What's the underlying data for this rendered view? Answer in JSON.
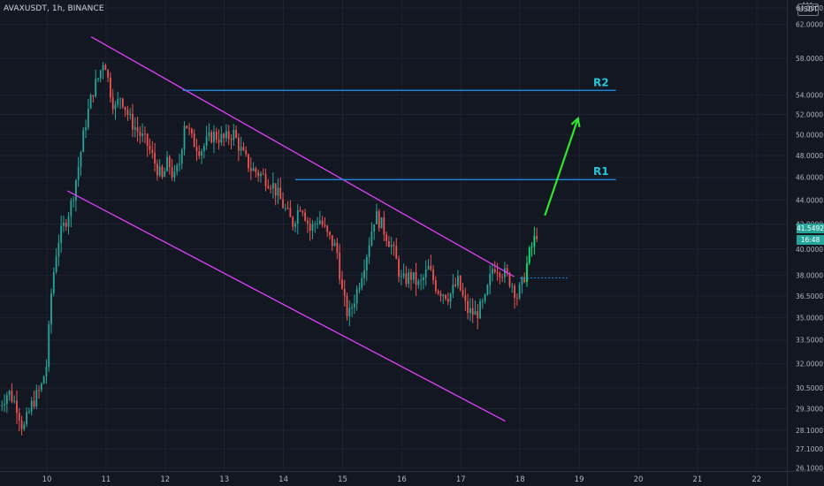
{
  "header": {
    "symbol_title": "AVAXUSDT, 1h, BINANCE",
    "currency_label": "USDT"
  },
  "price_tag": {
    "price": "41.5492",
    "countdown": "16:48"
  },
  "colors": {
    "background": "#131722",
    "up": "#26a69a",
    "down": "#ef5350",
    "up_bright": "#00e676",
    "channel": "#e040fb",
    "resistance": "#2196f3",
    "arrow": "#2ee62e",
    "level_label": "#26c6da"
  },
  "chart_data": {
    "type": "candlestick",
    "title": "AVAXUSDT, 1h, BINANCE",
    "xlabel": "",
    "ylabel": "",
    "x_ticks": [
      "10",
      "11",
      "12",
      "13",
      "14",
      "15",
      "16",
      "17",
      "18",
      "19",
      "20",
      "21",
      "22"
    ],
    "y_ticks": [
      "62.0000",
      "58.0000",
      "54.0000",
      "52.0000",
      "50.0000",
      "48.0000",
      "46.0000",
      "44.0000",
      "42.0000",
      "40.0000",
      "38.0000",
      "36.5000",
      "35.0000",
      "33.5000",
      "32.0000",
      "30.5000",
      "29.3000",
      "28.1000",
      "27.1000",
      "26.1000",
      "64.0000"
    ],
    "y_scale": "log",
    "ylim": [
      25.2,
      65.0
    ],
    "xlim": [
      9.17,
      22.2
    ],
    "last_price": 41.5492,
    "price_path": [
      [
        9.2,
        29.5
      ],
      [
        9.35,
        30.3
      ],
      [
        9.5,
        29.4
      ],
      [
        9.6,
        28.1
      ],
      [
        9.75,
        29.6
      ],
      [
        9.9,
        30.5
      ],
      [
        10.0,
        32.0
      ],
      [
        10.08,
        37.0
      ],
      [
        10.18,
        40.5
      ],
      [
        10.3,
        42.0
      ],
      [
        10.42,
        43.8
      ],
      [
        10.55,
        47.5
      ],
      [
        10.65,
        51.0
      ],
      [
        10.78,
        54.5
      ],
      [
        10.88,
        56.0
      ],
      [
        10.97,
        58.2
      ],
      [
        11.05,
        55.0
      ],
      [
        11.15,
        52.5
      ],
      [
        11.25,
        54.0
      ],
      [
        11.4,
        51.5
      ],
      [
        11.55,
        50.2
      ],
      [
        11.7,
        49.0
      ],
      [
        11.85,
        47.0
      ],
      [
        11.95,
        45.8
      ],
      [
        12.05,
        47.5
      ],
      [
        12.15,
        45.8
      ],
      [
        12.25,
        47.5
      ],
      [
        12.33,
        51.5
      ],
      [
        12.45,
        49.5
      ],
      [
        12.6,
        48.5
      ],
      [
        12.8,
        50.0
      ],
      [
        13.0,
        49.5
      ],
      [
        13.15,
        50.2
      ],
      [
        13.3,
        48.2
      ],
      [
        13.45,
        46.8
      ],
      [
        13.6,
        46.3
      ],
      [
        13.8,
        45.5
      ],
      [
        14.0,
        43.5
      ],
      [
        14.15,
        42.0
      ],
      [
        14.3,
        43.8
      ],
      [
        14.45,
        41.5
      ],
      [
        14.6,
        42.5
      ],
      [
        14.75,
        41.0
      ],
      [
        14.9,
        40.0
      ],
      [
        15.0,
        36.5
      ],
      [
        15.1,
        35.0
      ],
      [
        15.25,
        37.0
      ],
      [
        15.4,
        39.5
      ],
      [
        15.55,
        42.8
      ],
      [
        15.65,
        42.0
      ],
      [
        15.85,
        40.0
      ],
      [
        16.0,
        37.5
      ],
      [
        16.15,
        38.0
      ],
      [
        16.3,
        37.2
      ],
      [
        16.45,
        38.5
      ],
      [
        16.6,
        37.0
      ],
      [
        16.8,
        36.5
      ],
      [
        16.95,
        37.5
      ],
      [
        17.1,
        35.5
      ],
      [
        17.25,
        35.2
      ],
      [
        17.4,
        36.0
      ],
      [
        17.55,
        38.8
      ],
      [
        17.7,
        38.3
      ],
      [
        17.85,
        37.5
      ],
      [
        17.95,
        36.5
      ],
      [
        18.05,
        37.5
      ],
      [
        18.15,
        39.5
      ],
      [
        18.3,
        41.5
      ]
    ],
    "annotations": {
      "channel_upper": [
        [
          10.75,
          60.5
        ],
        [
          17.9,
          37.9
        ]
      ],
      "channel_lower": [
        [
          10.35,
          44.8
        ],
        [
          17.75,
          28.6
        ]
      ],
      "resistance_lines": [
        {
          "label": "R2",
          "from_x": 12.3,
          "to_x": 19.62,
          "price": 54.5
        },
        {
          "label": "R1",
          "from_x": 14.2,
          "to_x": 19.62,
          "price": 45.8
        }
      ],
      "current_price_dotted": {
        "from_x": 18.0,
        "to_x": 18.8,
        "price": 37.8
      },
      "projection_arrow": [
        [
          18.42,
          42.7
        ],
        [
          18.98,
          51.6
        ]
      ]
    }
  }
}
